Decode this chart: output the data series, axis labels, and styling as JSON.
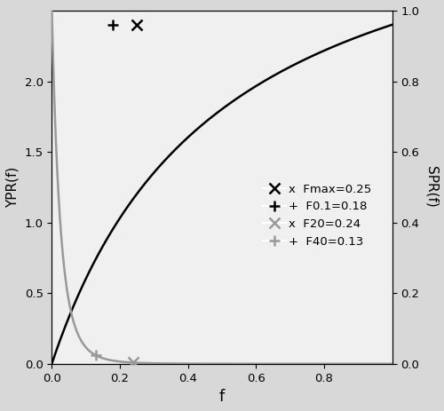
{
  "title": "",
  "xlabel": "f",
  "ylabel_left": "YPR(f)",
  "ylabel_right": "SPR(f)",
  "xlim": [
    0.0,
    1.0
  ],
  "ylim_left": [
    0.0,
    2.5
  ],
  "ylim_right": [
    0.0,
    1.0
  ],
  "xticks": [
    0.0,
    0.2,
    0.4,
    0.6,
    0.8
  ],
  "yticks_left": [
    0.0,
    0.5,
    1.0,
    1.5,
    2.0
  ],
  "yticks_right": [
    0.0,
    0.2,
    0.4,
    0.6,
    0.8,
    1.0
  ],
  "ypr_color": "#000000",
  "spr_color": "#999999",
  "background_color": "#d8d8d8",
  "plot_bg_color": "#f0f0f0",
  "Fmax": 0.25,
  "F01": 0.18,
  "F20": 0.24,
  "F40": 0.13,
  "ypr_scale": 2.4,
  "spr_n": 6.0,
  "spr_M": 0.15,
  "M": 0.5,
  "K": 1.8,
  "legend_fontsize": 9.5
}
